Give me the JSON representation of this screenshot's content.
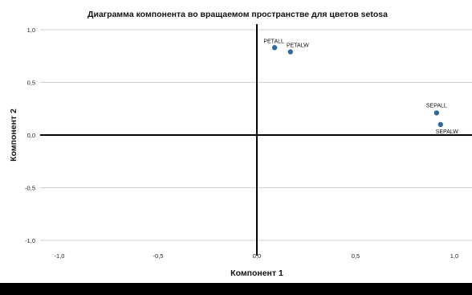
{
  "chart_data": {
    "type": "scatter",
    "title": "Диаграмма компонента во вращаемом пространстве для цветов setosa",
    "xlabel": "Компонент 1",
    "ylabel": "Компонент 2",
    "xlim": [
      -1.1,
      1.1
    ],
    "ylim": [
      -1.1,
      1.1
    ],
    "xticks": [
      -1.0,
      -0.5,
      0.0,
      0.5,
      1.0
    ],
    "yticks": [
      -1.0,
      -0.5,
      0.0,
      0.5,
      1.0
    ],
    "xtick_labels": [
      "-1,0",
      "-0,5",
      "0,0",
      "0,5",
      "1,0"
    ],
    "ytick_labels": [
      "-1,0",
      "-0,5",
      "0,0",
      "0,5",
      "1,0"
    ],
    "grid": "horizontal",
    "marker_color": "#2e6da4",
    "points": [
      {
        "label": "PETALL",
        "x": 0.09,
        "y": 0.83
      },
      {
        "label": "PETALW",
        "x": 0.17,
        "y": 0.79
      },
      {
        "label": "SEPALL",
        "x": 0.91,
        "y": 0.21
      },
      {
        "label": "SEPALW",
        "x": 0.93,
        "y": 0.1
      }
    ]
  }
}
